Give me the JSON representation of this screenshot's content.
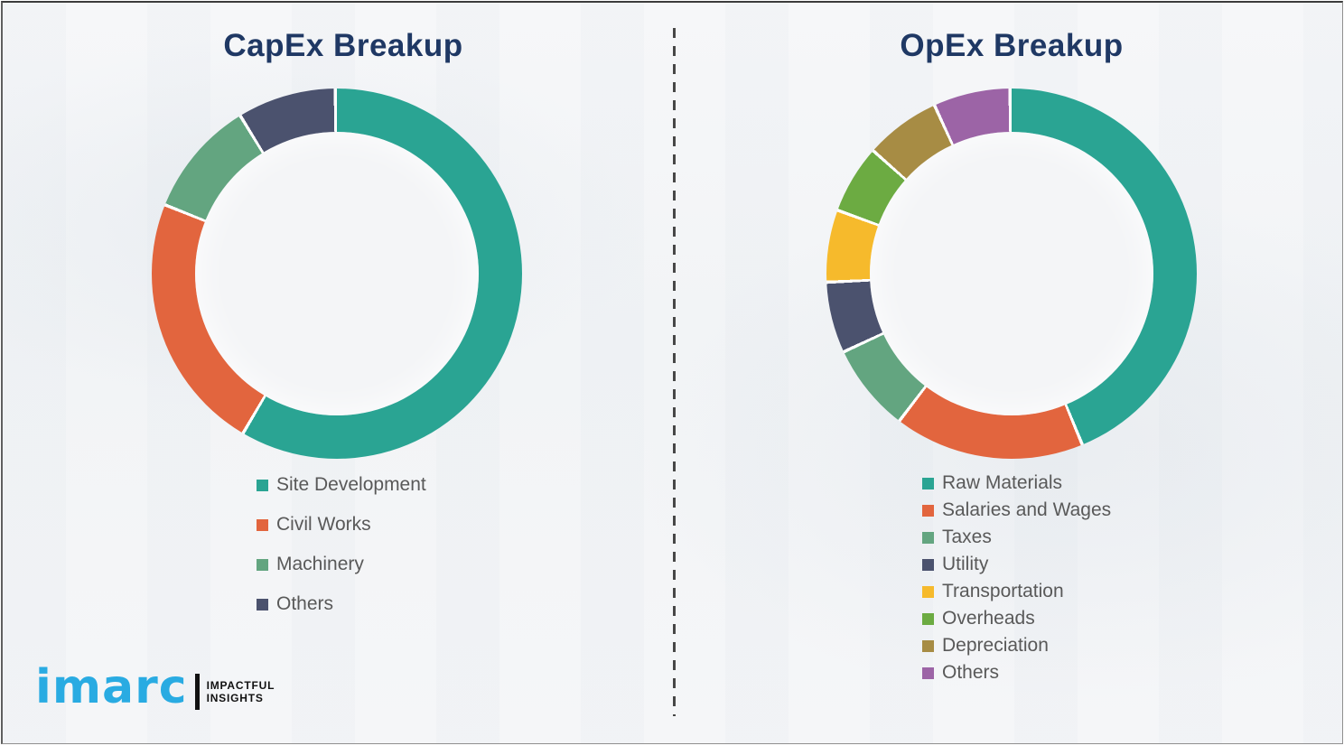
{
  "chart_data": [
    {
      "type": "pie",
      "subtype": "donut",
      "title": "CapEx Breakup",
      "categories": [
        "Site Development",
        "Civil Works",
        "Machinery",
        "Others"
      ],
      "values": [
        58.6,
        22.6,
        10.2,
        8.6
      ],
      "unit": "percent",
      "colors": [
        "#2aa493",
        "#e2653e",
        "#63a580",
        "#4b526e"
      ],
      "start_angle_deg": 0,
      "direction": "clockwise",
      "donut_hole_ratio": 0.76,
      "legend_position": "below-left",
      "separator_color": "#ffffff"
    },
    {
      "type": "pie",
      "subtype": "donut",
      "title": "OpEx Breakup",
      "categories": [
        "Raw Materials",
        "Salaries and Wages",
        "Taxes",
        "Utility",
        "Transportation",
        "Overheads",
        "Depreciation",
        "Others"
      ],
      "values": [
        43.9,
        16.6,
        7.7,
        6.2,
        6.3,
        6.0,
        6.6,
        6.7
      ],
      "unit": "percent",
      "colors": [
        "#2aa493",
        "#e2653e",
        "#63a580",
        "#4b526e",
        "#f6ba2c",
        "#6cab42",
        "#a78c44",
        "#9c64a6"
      ],
      "start_angle_deg": 0,
      "direction": "clockwise",
      "donut_hole_ratio": 0.76,
      "legend_position": "below-left",
      "separator_color": "#ffffff"
    }
  ],
  "style": {
    "title_color": "#1f3864",
    "legend_text_color": "#595959",
    "divider_color": "#474747",
    "background_color": "#f4f5f7"
  },
  "logo": {
    "brand": "imarc",
    "brand_color": "#29abe2",
    "tagline_line1": "IMPACTFUL",
    "tagline_line2": "INSIGHTS"
  }
}
